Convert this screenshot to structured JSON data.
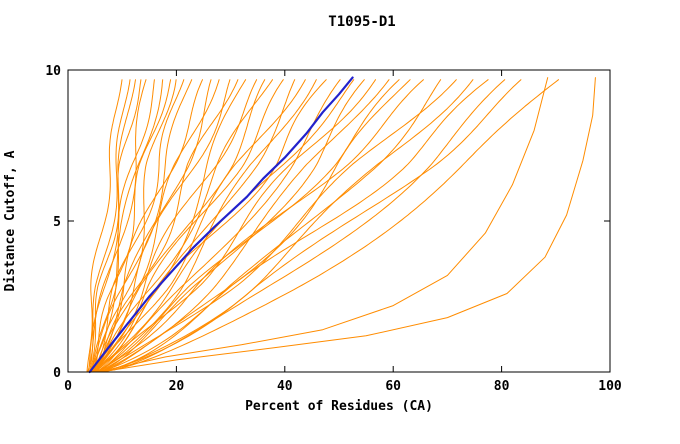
{
  "page": {
    "background": "#ffffff"
  },
  "chart_data": {
    "type": "line",
    "title": "T1095-D1",
    "xlabel": "Percent of Residues (CA)",
    "ylabel": "Distance Cutoff, A",
    "xlim": [
      0,
      100
    ],
    "ylim": [
      0,
      10
    ],
    "xticks": [
      0,
      20,
      40,
      60,
      80,
      100
    ],
    "yticks": [
      0,
      5,
      10
    ],
    "grid": false,
    "legend": "none",
    "curve_top_y": 9.75,
    "colors": {
      "models": "#FF8C00",
      "highlight": "#2222CC",
      "axis": "#000000",
      "text": "#000000",
      "background": "#ffffff"
    },
    "highlight_series": {
      "points": [
        [
          4,
          0
        ],
        [
          7,
          0.7
        ],
        [
          11,
          1.6
        ],
        [
          15,
          2.5
        ],
        [
          19,
          3.3
        ],
        [
          23,
          4.1
        ],
        [
          27,
          4.8
        ],
        [
          30,
          5.3
        ],
        [
          33,
          5.8
        ],
        [
          36,
          6.4
        ],
        [
          40,
          7.1
        ],
        [
          44,
          7.9
        ],
        [
          47,
          8.6
        ],
        [
          50,
          9.2
        ],
        [
          52.5,
          9.75
        ]
      ]
    },
    "model_series": [
      {
        "x0": 3.5,
        "top": 10,
        "shape": 1.25,
        "amp": 0.8,
        "freq": 1.3,
        "ph": 0.5
      },
      {
        "x0": 4.0,
        "top": 11.5,
        "shape": 1.1,
        "amp": 1.0,
        "freq": 1.1,
        "ph": 2.1
      },
      {
        "x0": 3.8,
        "top": 12.5,
        "shape": 0.95,
        "amp": 1.2,
        "freq": 0.9,
        "ph": 4.0
      },
      {
        "x0": 4.2,
        "top": 13.5,
        "shape": 1.2,
        "amp": 0.9,
        "freq": 1.4,
        "ph": 1.2
      },
      {
        "x0": 3.6,
        "top": 14.5,
        "shape": 0.85,
        "amp": 1.5,
        "freq": 0.8,
        "ph": 3.3
      },
      {
        "x0": 4.5,
        "top": 16,
        "shape": 1.05,
        "amp": 1.3,
        "freq": 1.0,
        "ph": 5.2
      },
      {
        "x0": 4.0,
        "top": 17.5,
        "shape": 0.9,
        "amp": 1.6,
        "freq": 0.7,
        "ph": 0.9
      },
      {
        "x0": 5.0,
        "top": 19,
        "shape": 1.15,
        "amp": 1.2,
        "freq": 1.2,
        "ph": 2.8
      },
      {
        "x0": 4.3,
        "top": 20,
        "shape": 0.8,
        "amp": 1.8,
        "freq": 0.9,
        "ph": 4.6
      },
      {
        "x0": 4.8,
        "top": 21.5,
        "shape": 1.0,
        "amp": 1.4,
        "freq": 1.1,
        "ph": 1.7
      },
      {
        "x0": 4.1,
        "top": 23,
        "shape": 0.9,
        "amp": 1.7,
        "freq": 0.8,
        "ph": 3.9
      },
      {
        "x0": 5.2,
        "top": 25,
        "shape": 1.1,
        "amp": 1.5,
        "freq": 1.0,
        "ph": 0.3
      },
      {
        "x0": 4.4,
        "top": 26.5,
        "shape": 0.85,
        "amp": 2.0,
        "freq": 0.7,
        "ph": 2.4
      },
      {
        "x0": 4.9,
        "top": 28,
        "shape": 1.0,
        "amp": 1.6,
        "freq": 0.9,
        "ph": 5.0
      },
      {
        "x0": 4.2,
        "top": 30,
        "shape": 0.9,
        "amp": 2.1,
        "freq": 0.8,
        "ph": 1.1
      },
      {
        "x0": 5.5,
        "top": 31.5,
        "shape": 1.05,
        "amp": 1.7,
        "freq": 1.0,
        "ph": 3.6
      },
      {
        "x0": 4.6,
        "top": 33,
        "shape": 0.8,
        "amp": 2.2,
        "freq": 0.6,
        "ph": 5.5
      },
      {
        "x0": 5.0,
        "top": 35,
        "shape": 0.95,
        "amp": 1.8,
        "freq": 0.9,
        "ph": 0.7
      },
      {
        "x0": 4.3,
        "top": 36.5,
        "shape": 0.85,
        "amp": 2.3,
        "freq": 0.7,
        "ph": 2.9
      },
      {
        "x0": 5.3,
        "top": 38,
        "shape": 1.0,
        "amp": 1.9,
        "freq": 0.8,
        "ph": 4.4
      },
      {
        "x0": 4.7,
        "top": 40,
        "shape": 0.9,
        "amp": 2.0,
        "freq": 0.9,
        "ph": 1.5
      },
      {
        "x0": 5.1,
        "top": 42,
        "shape": 0.8,
        "amp": 2.4,
        "freq": 0.6,
        "ph": 3.2
      },
      {
        "x0": 4.5,
        "top": 44,
        "shape": 0.95,
        "amp": 2.1,
        "freq": 0.8,
        "ph": 5.8
      },
      {
        "x0": 5.6,
        "top": 46,
        "shape": 0.85,
        "amp": 2.2,
        "freq": 0.7,
        "ph": 0.4
      },
      {
        "x0": 4.8,
        "top": 48,
        "shape": 0.9,
        "amp": 2.5,
        "freq": 0.9,
        "ph": 2.2
      },
      {
        "x0": 5.2,
        "top": 50.5,
        "shape": 0.8,
        "amp": 2.3,
        "freq": 0.6,
        "ph": 4.1
      },
      {
        "x0": 4.6,
        "top": 53,
        "shape": 0.95,
        "amp": 2.0,
        "freq": 0.8,
        "ph": 1.0
      },
      {
        "x0": 5.4,
        "top": 55,
        "shape": 0.75,
        "amp": 2.6,
        "freq": 0.7,
        "ph": 3.5
      },
      {
        "x0": 4.9,
        "top": 57,
        "shape": 0.9,
        "amp": 2.2,
        "freq": 0.9,
        "ph": 5.3
      },
      {
        "x0": 5.7,
        "top": 59.5,
        "shape": 0.8,
        "amp": 2.4,
        "freq": 0.6,
        "ph": 0.8
      },
      {
        "x0": 5.0,
        "top": 61.5,
        "shape": 0.85,
        "amp": 2.5,
        "freq": 0.8,
        "ph": 2.6
      },
      {
        "x0": 5.8,
        "top": 63.5,
        "shape": 0.75,
        "amp": 2.7,
        "freq": 0.7,
        "ph": 4.8
      },
      {
        "x0": 5.1,
        "top": 66,
        "shape": 0.9,
        "amp": 2.3,
        "freq": 0.9,
        "ph": 1.3
      },
      {
        "x0": 5.9,
        "top": 69,
        "shape": 0.7,
        "amp": 2.8,
        "freq": 0.6,
        "ph": 3.0
      },
      {
        "x0": 5.3,
        "top": 72,
        "shape": 0.85,
        "amp": 2.4,
        "freq": 0.8,
        "ph": 5.6
      },
      {
        "x0": 6.0,
        "top": 75,
        "shape": 0.75,
        "amp": 2.6,
        "freq": 0.7,
        "ph": 0.6
      },
      {
        "x0": 5.5,
        "top": 78,
        "shape": 0.8,
        "amp": 2.5,
        "freq": 0.9,
        "ph": 2.0
      },
      {
        "x0": 6.2,
        "top": 81,
        "shape": 0.7,
        "amp": 2.7,
        "freq": 0.6,
        "ph": 4.3
      },
      {
        "x0": 5.6,
        "top": 84,
        "shape": 0.75,
        "amp": 2.4,
        "freq": 0.8,
        "ph": 1.8
      },
      {
        "x0": 5.8,
        "top": 91,
        "shape": 0.7,
        "amp": 2.2,
        "freq": 0.6,
        "ph": 5.1
      },
      {
        "points": [
          [
            5.5,
            0
          ],
          [
            18,
            0.5
          ],
          [
            32,
            0.9
          ],
          [
            47,
            1.4
          ],
          [
            60,
            2.2
          ],
          [
            70,
            3.2
          ],
          [
            77,
            4.6
          ],
          [
            82,
            6.2
          ],
          [
            86,
            8.0
          ],
          [
            88.5,
            9.75
          ]
        ]
      },
      {
        "points": [
          [
            6,
            0
          ],
          [
            20,
            0.4
          ],
          [
            38,
            0.8
          ],
          [
            55,
            1.2
          ],
          [
            70,
            1.8
          ],
          [
            81,
            2.6
          ],
          [
            88,
            3.8
          ],
          [
            92,
            5.2
          ],
          [
            95,
            7.0
          ],
          [
            96.8,
            8.5
          ],
          [
            97.3,
            9.75
          ]
        ]
      }
    ]
  }
}
